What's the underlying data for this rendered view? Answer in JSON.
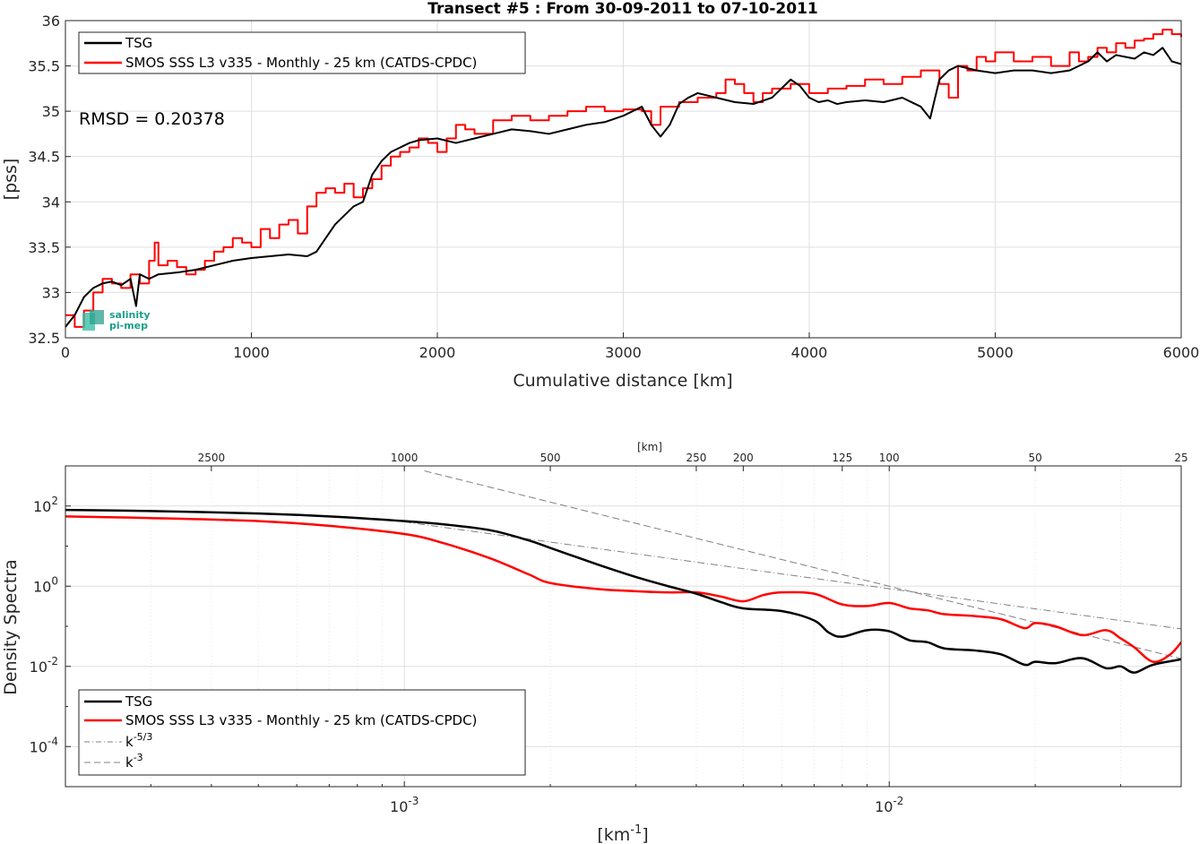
{
  "chart_data": [
    {
      "type": "line",
      "title": "Transect #5 : From 30-09-2011 to 07-10-2011",
      "xlabel": "Cumulative distance [km]",
      "ylabel": "[pss]",
      "xlim": [
        0,
        6000
      ],
      "ylim": [
        32.5,
        36
      ],
      "xticks": [
        0,
        1000,
        2000,
        3000,
        4000,
        5000,
        6000
      ],
      "xticklabels": [
        "0",
        "1000",
        "2000",
        "3000",
        "4000",
        "5000",
        "6000"
      ],
      "yticks": [
        32.5,
        33,
        33.5,
        34,
        34.5,
        35,
        35.5,
        36
      ],
      "yticklabels": [
        "32.5",
        "33",
        "33.5",
        "34",
        "34.5",
        "35",
        "35.5",
        "36"
      ],
      "grid": true,
      "legend_position": "top-left",
      "annotation": "RMSD = 0.20378",
      "logo": {
        "line1": "salinity",
        "line2": "pi-mep"
      },
      "series": [
        {
          "name": "TSG",
          "color": "#000000",
          "x": [
            0,
            50,
            100,
            150,
            200,
            250,
            300,
            350,
            380,
            400,
            450,
            500,
            600,
            700,
            800,
            900,
            1000,
            1100,
            1200,
            1300,
            1350,
            1400,
            1450,
            1500,
            1550,
            1600,
            1650,
            1700,
            1750,
            1800,
            1850,
            1900,
            2000,
            2100,
            2200,
            2300,
            2400,
            2500,
            2600,
            2700,
            2800,
            2900,
            3000,
            3100,
            3150,
            3200,
            3250,
            3300,
            3350,
            3400,
            3500,
            3600,
            3700,
            3800,
            3850,
            3900,
            3950,
            4000,
            4050,
            4100,
            4150,
            4200,
            4300,
            4400,
            4500,
            4600,
            4650,
            4700,
            4750,
            4800,
            4900,
            5000,
            5100,
            5200,
            5300,
            5400,
            5500,
            5550,
            5600,
            5650,
            5700,
            5750,
            5800,
            5850,
            5900,
            5950,
            6000
          ],
          "values": [
            32.62,
            32.75,
            32.95,
            33.05,
            33.1,
            33.12,
            33.08,
            33.15,
            32.85,
            33.2,
            33.15,
            33.2,
            33.22,
            33.25,
            33.3,
            33.35,
            33.38,
            33.4,
            33.42,
            33.4,
            33.45,
            33.6,
            33.75,
            33.85,
            33.95,
            34.0,
            34.3,
            34.45,
            34.55,
            34.6,
            34.65,
            34.68,
            34.7,
            34.65,
            34.7,
            34.75,
            34.8,
            34.78,
            34.75,
            34.8,
            34.85,
            34.88,
            34.95,
            35.05,
            34.85,
            34.72,
            34.85,
            35.08,
            35.15,
            35.2,
            35.15,
            35.1,
            35.08,
            35.15,
            35.25,
            35.35,
            35.28,
            35.15,
            35.1,
            35.12,
            35.08,
            35.1,
            35.12,
            35.1,
            35.15,
            35.05,
            34.92,
            35.35,
            35.45,
            35.5,
            35.45,
            35.42,
            35.45,
            35.45,
            35.42,
            35.45,
            35.55,
            35.65,
            35.55,
            35.62,
            35.6,
            35.58,
            35.65,
            35.62,
            35.7,
            35.55,
            35.52
          ]
        },
        {
          "name": "SMOS SSS L3 v335 - Monthly - 25 km (CATDS-CPDC)",
          "color": "#ff0000",
          "x": [
            0,
            50,
            100,
            150,
            200,
            250,
            300,
            350,
            400,
            450,
            480,
            500,
            550,
            600,
            650,
            700,
            750,
            800,
            850,
            900,
            950,
            1000,
            1050,
            1100,
            1150,
            1200,
            1250,
            1300,
            1350,
            1400,
            1450,
            1500,
            1550,
            1600,
            1650,
            1700,
            1750,
            1800,
            1850,
            1900,
            1950,
            2000,
            2050,
            2100,
            2150,
            2200,
            2300,
            2400,
            2500,
            2600,
            2700,
            2800,
            2900,
            3000,
            3100,
            3150,
            3200,
            3300,
            3400,
            3500,
            3550,
            3600,
            3650,
            3700,
            3750,
            3800,
            3900,
            4000,
            4100,
            4200,
            4300,
            4400,
            4500,
            4600,
            4700,
            4750,
            4800,
            4850,
            4900,
            4950,
            5000,
            5100,
            5200,
            5300,
            5400,
            5450,
            5500,
            5550,
            5600,
            5650,
            5700,
            5750,
            5800,
            5850,
            5900,
            5950,
            6000
          ],
          "values": [
            32.75,
            32.62,
            32.8,
            33.0,
            33.15,
            33.1,
            33.05,
            33.2,
            33.1,
            33.35,
            33.55,
            33.3,
            33.35,
            33.28,
            33.2,
            33.25,
            33.35,
            33.45,
            33.5,
            33.6,
            33.55,
            33.5,
            33.7,
            33.6,
            33.75,
            33.8,
            33.65,
            33.95,
            34.1,
            34.15,
            34.1,
            34.2,
            34.05,
            34.15,
            34.25,
            34.4,
            34.5,
            34.55,
            34.6,
            34.7,
            34.65,
            34.55,
            34.7,
            34.85,
            34.8,
            34.75,
            34.9,
            34.95,
            34.9,
            34.95,
            35.0,
            35.05,
            35.0,
            35.02,
            35.0,
            34.85,
            35.05,
            35.1,
            35.15,
            35.2,
            35.35,
            35.3,
            35.2,
            35.1,
            35.2,
            35.25,
            35.3,
            35.2,
            35.25,
            35.28,
            35.35,
            35.3,
            35.38,
            35.45,
            35.3,
            35.15,
            35.5,
            35.45,
            35.6,
            35.55,
            35.65,
            35.55,
            35.6,
            35.5,
            35.65,
            35.55,
            35.6,
            35.7,
            35.65,
            35.75,
            35.7,
            35.78,
            35.8,
            35.85,
            35.9,
            35.85,
            35.82
          ]
        }
      ]
    },
    {
      "type": "line",
      "xlabel": "[km-1]",
      "xlabel_main": "[km",
      "xlabel_sup": "-1",
      "xlabel_end": "]",
      "ylabel": "Density Spectra",
      "xscale": "log",
      "yscale": "log",
      "xlim": [
        0.0002,
        0.04
      ],
      "ylim": [
        1e-05,
        1000
      ],
      "xticks": [
        0.001,
        0.01
      ],
      "xticklabels": [
        {
          "base": "10",
          "exp": "-3"
        },
        {
          "base": "10",
          "exp": "-2"
        }
      ],
      "yticks": [
        0.0001,
        0.01,
        1,
        100
      ],
      "yticklabels": [
        {
          "base": "10",
          "exp": "-4"
        },
        {
          "base": "10",
          "exp": "-2"
        },
        {
          "base": "10",
          "exp": "0"
        },
        {
          "base": "10",
          "exp": "2"
        }
      ],
      "top_axis_label": "[km]",
      "top_ticks": [
        2500,
        1000,
        500,
        250,
        200,
        125,
        100,
        50,
        25
      ],
      "top_ticklabels": [
        "2500",
        "1000",
        "500",
        "250",
        "200",
        "125",
        "100",
        "50",
        "25"
      ],
      "grid": true,
      "legend_position": "bottom-left",
      "series": [
        {
          "name": "TSG",
          "color": "#000000",
          "x": [
            0.0002,
            0.0003,
            0.0005,
            0.0007,
            0.001,
            0.0012,
            0.0015,
            0.0018,
            0.002,
            0.0025,
            0.003,
            0.0035,
            0.004,
            0.0045,
            0.005,
            0.006,
            0.007,
            0.0075,
            0.008,
            0.009,
            0.01,
            0.011,
            0.012,
            0.013,
            0.015,
            0.017,
            0.019,
            0.02,
            0.022,
            0.025,
            0.028,
            0.03,
            0.032,
            0.035,
            0.04
          ],
          "values": [
            80,
            75,
            65,
            55,
            42,
            35,
            25,
            14,
            9,
            3.5,
            1.7,
            1.0,
            0.65,
            0.4,
            0.28,
            0.24,
            0.14,
            0.07,
            0.055,
            0.08,
            0.075,
            0.045,
            0.04,
            0.028,
            0.025,
            0.02,
            0.011,
            0.013,
            0.012,
            0.016,
            0.009,
            0.01,
            0.007,
            0.011,
            0.015
          ]
        },
        {
          "name": "SMOS SSS L3 v335 - Monthly - 25 km (CATDS-CPDC)",
          "color": "#ff0000",
          "x": [
            0.0002,
            0.0003,
            0.0005,
            0.0007,
            0.001,
            0.0012,
            0.0015,
            0.0018,
            0.002,
            0.0025,
            0.003,
            0.0035,
            0.004,
            0.0045,
            0.005,
            0.0055,
            0.006,
            0.007,
            0.008,
            0.009,
            0.01,
            0.011,
            0.012,
            0.013,
            0.015,
            0.017,
            0.019,
            0.02,
            0.022,
            0.025,
            0.028,
            0.03,
            0.032,
            0.035,
            0.038,
            0.04
          ],
          "values": [
            55,
            50,
            42,
            32,
            20,
            12,
            5,
            2.0,
            1.2,
            0.85,
            0.75,
            0.7,
            0.7,
            0.55,
            0.42,
            0.6,
            0.7,
            0.65,
            0.35,
            0.32,
            0.38,
            0.28,
            0.25,
            0.2,
            0.18,
            0.15,
            0.09,
            0.12,
            0.1,
            0.06,
            0.08,
            0.05,
            0.03,
            0.013,
            0.02,
            0.04
          ]
        },
        {
          "name": "k-5/3",
          "label_main": "k",
          "label_sup": "-5/3",
          "color": "#808080",
          "style": "dashdot",
          "x": [
            0.001,
            0.04
          ],
          "values": [
            40,
            0.086
          ]
        },
        {
          "name": "k-3",
          "label_main": "k",
          "label_sup": "-3",
          "color": "#808080",
          "style": "dashed",
          "x": [
            0.0011,
            0.04
          ],
          "values": [
            751,
            0.0156
          ]
        }
      ]
    }
  ]
}
